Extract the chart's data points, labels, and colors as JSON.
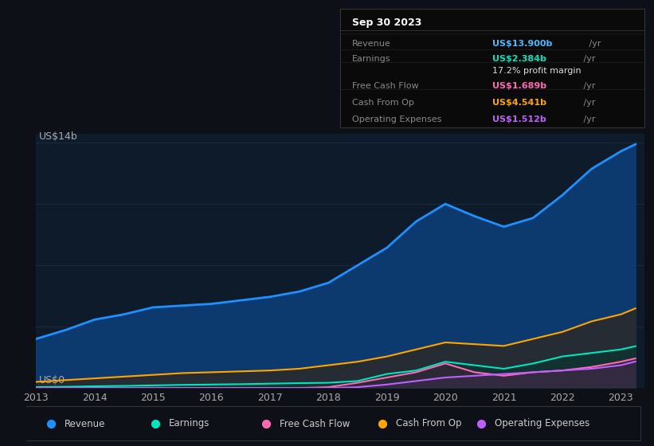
{
  "bg_color": "#0d1117",
  "plot_bg_color": "#0d1b2a",
  "grid_color": "#1e2d3d",
  "years": [
    2013,
    2013.5,
    2014,
    2014.5,
    2015,
    2015.5,
    2016,
    2016.5,
    2017,
    2017.5,
    2018,
    2018.5,
    2019,
    2019.5,
    2020,
    2020.5,
    2021,
    2021.5,
    2022,
    2022.5,
    2023,
    2023.25
  ],
  "revenue": [
    2.8,
    3.3,
    3.9,
    4.2,
    4.6,
    4.7,
    4.8,
    5.0,
    5.2,
    5.5,
    6.0,
    7.0,
    8.0,
    9.5,
    10.5,
    9.8,
    9.2,
    9.7,
    11.0,
    12.5,
    13.5,
    13.9
  ],
  "earnings": [
    0.05,
    0.07,
    0.1,
    0.12,
    0.15,
    0.18,
    0.2,
    0.22,
    0.25,
    0.28,
    0.3,
    0.4,
    0.8,
    1.0,
    1.5,
    1.3,
    1.1,
    1.4,
    1.8,
    2.0,
    2.2,
    2.384
  ],
  "free_cash": [
    0.0,
    0.0,
    0.0,
    0.0,
    0.0,
    0.0,
    0.0,
    0.0,
    0.0,
    0.0,
    0.05,
    0.3,
    0.6,
    0.9,
    1.4,
    0.9,
    0.7,
    0.9,
    1.0,
    1.2,
    1.5,
    1.689
  ],
  "cash_from_op": [
    0.35,
    0.45,
    0.55,
    0.65,
    0.75,
    0.85,
    0.9,
    0.95,
    1.0,
    1.1,
    1.3,
    1.5,
    1.8,
    2.2,
    2.6,
    2.5,
    2.4,
    2.8,
    3.2,
    3.8,
    4.2,
    4.541
  ],
  "op_expenses": [
    0.0,
    0.0,
    0.0,
    0.0,
    0.0,
    0.0,
    0.0,
    0.0,
    0.0,
    0.0,
    0.0,
    0.05,
    0.2,
    0.4,
    0.6,
    0.7,
    0.8,
    0.9,
    1.0,
    1.1,
    1.3,
    1.512
  ],
  "revenue_color": "#1e90ff",
  "earnings_color": "#00e5c0",
  "free_cash_color": "#ff69b4",
  "cash_from_op_color": "#ffa500",
  "op_expenses_color": "#bf5fff",
  "revenue_fill": "#0d3a6e",
  "ylabel_top": "US$14b",
  "ylabel_bot": "US$0",
  "xticks": [
    2013,
    2014,
    2015,
    2016,
    2017,
    2018,
    2019,
    2020,
    2021,
    2022,
    2023
  ],
  "grid_yvals": [
    3.5,
    7.0,
    10.5,
    14.0
  ],
  "tooltip": {
    "date": "Sep 30 2023",
    "rows": [
      {
        "label": "Revenue",
        "value": "US$13.900b",
        "value_color": "#4db8ff",
        "extra": " /yr",
        "note": ""
      },
      {
        "label": "Earnings",
        "value": "US$2.384b",
        "value_color": "#00e5c0",
        "extra": " /yr",
        "note": ""
      },
      {
        "label": "",
        "value": "",
        "value_color": "",
        "extra": "",
        "note": "17.2% profit margin"
      },
      {
        "label": "Free Cash Flow",
        "value": "US$1.689b",
        "value_color": "#ff69b4",
        "extra": " /yr",
        "note": ""
      },
      {
        "label": "Cash From Op",
        "value": "US$4.541b",
        "value_color": "#ffa500",
        "extra": " /yr",
        "note": ""
      },
      {
        "label": "Operating Expenses",
        "value": "US$1.512b",
        "value_color": "#bf5fff",
        "extra": " /yr",
        "note": ""
      }
    ]
  },
  "legend_items": [
    {
      "label": "Revenue",
      "color": "#1e90ff"
    },
    {
      "label": "Earnings",
      "color": "#00e5c0"
    },
    {
      "label": "Free Cash Flow",
      "color": "#ff69b4"
    },
    {
      "label": "Cash From Op",
      "color": "#ffa500"
    },
    {
      "label": "Operating Expenses",
      "color": "#bf5fff"
    }
  ]
}
